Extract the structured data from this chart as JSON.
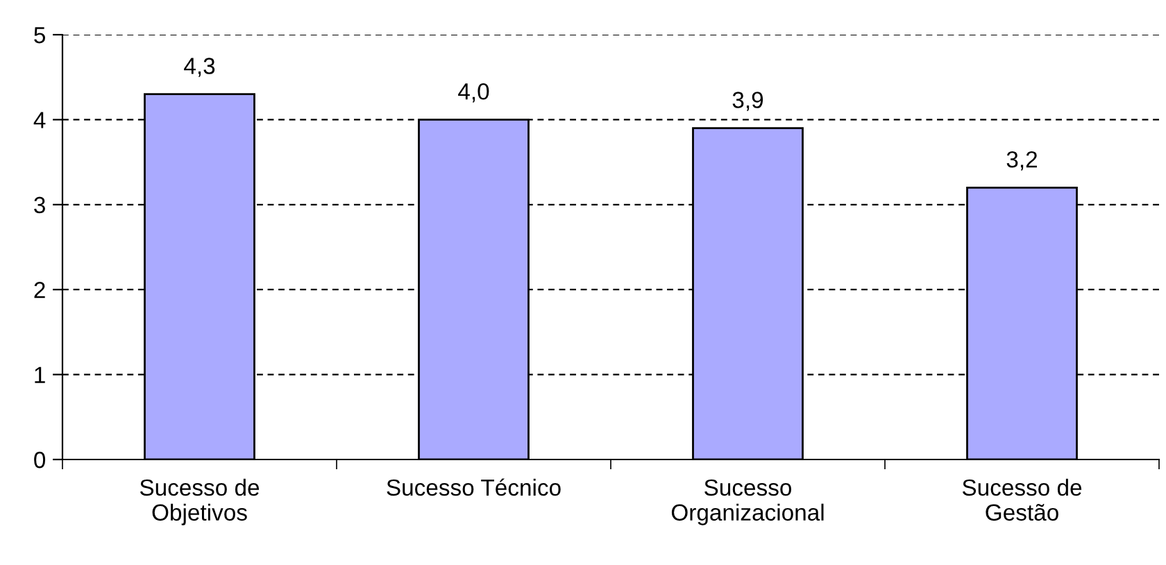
{
  "chart_data": {
    "type": "bar",
    "categories": [
      "Sucesso de\nObjetivos",
      "Sucesso Técnico",
      "Sucesso\nOrganizacional",
      "Sucesso de\nGestão"
    ],
    "values": [
      4.3,
      4.0,
      3.9,
      3.2
    ],
    "value_labels": [
      "4,3",
      "4,0",
      "3,9",
      "3,2"
    ],
    "color": "#aaaaff",
    "ylim": [
      0,
      5
    ],
    "yticks": [
      0,
      1,
      2,
      3,
      4,
      5
    ],
    "grid": "y"
  }
}
